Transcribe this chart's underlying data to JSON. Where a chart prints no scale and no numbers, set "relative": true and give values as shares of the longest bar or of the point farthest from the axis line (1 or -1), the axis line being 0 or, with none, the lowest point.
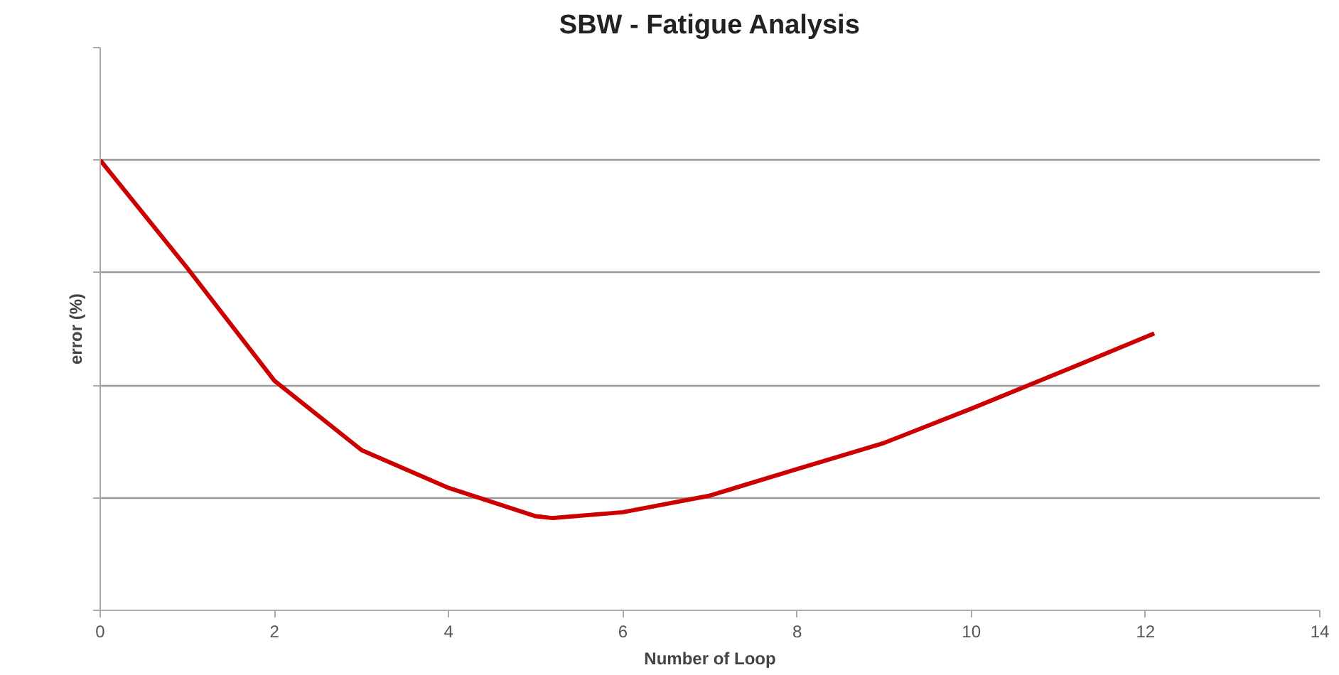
{
  "chart_data": {
    "type": "line",
    "title": "SBW - Fatigue Analysis",
    "xlabel": "Number of Loop",
    "ylabel": "error (%)",
    "relative": true,
    "x": [
      0,
      1,
      2,
      3,
      4,
      5,
      5.2,
      6,
      7,
      8,
      9,
      10,
      11,
      12.1
    ],
    "series": [
      {
        "color": "#cc0000",
        "values": [
          1.0,
          0.76,
          0.51,
          0.356,
          0.272,
          0.209,
          0.205,
          0.218,
          0.255,
          0.314,
          0.372,
          0.448,
          0.527,
          0.615
        ]
      }
    ],
    "xlim": [
      0,
      14
    ],
    "xticks": [
      0,
      2,
      4,
      6,
      8,
      10,
      12,
      14
    ],
    "grid": "y",
    "marker": "none",
    "line_style": "solid"
  }
}
